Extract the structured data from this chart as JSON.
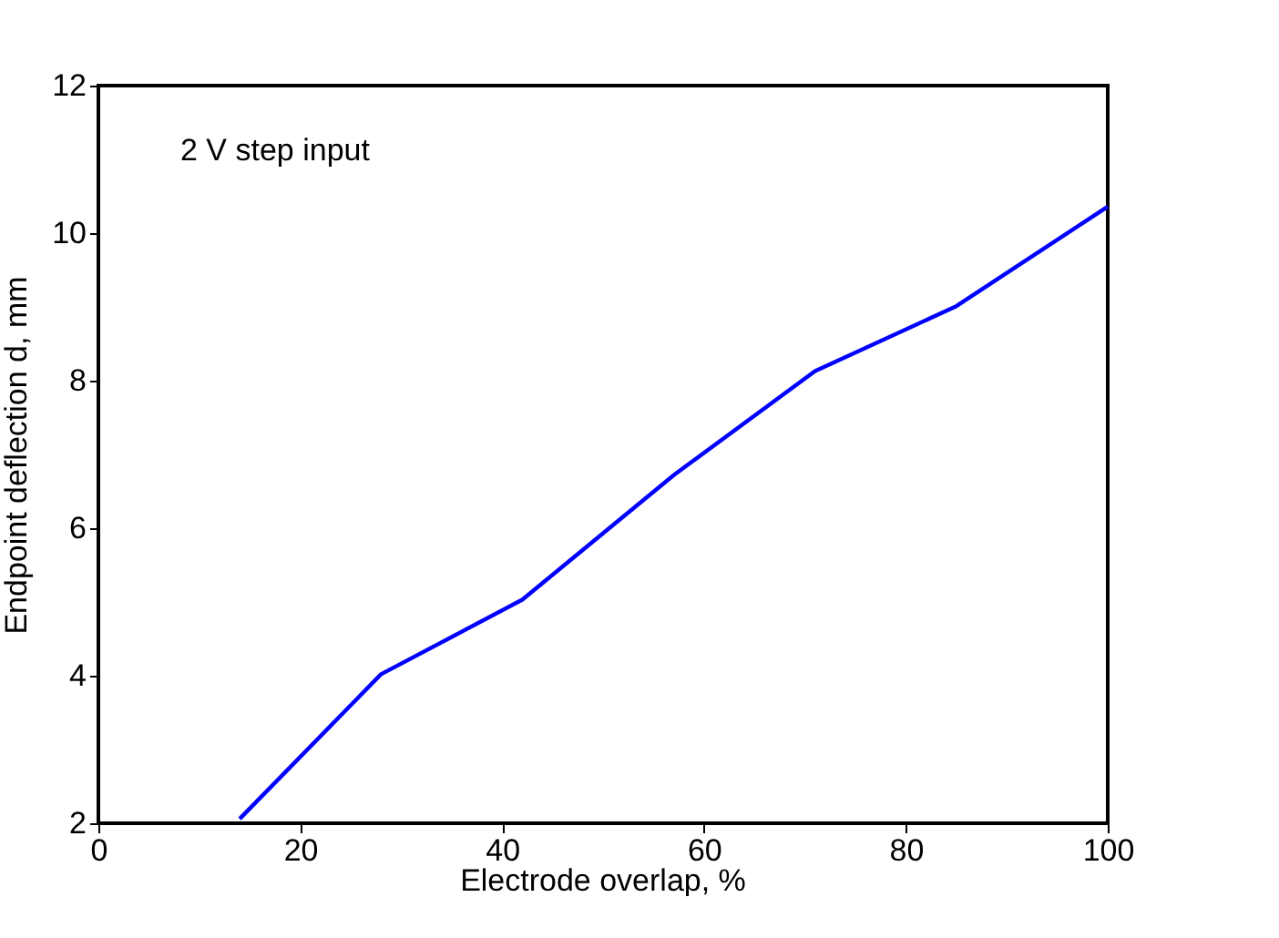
{
  "chart_data": {
    "type": "line",
    "x": [
      14,
      28,
      42,
      57,
      71,
      85,
      100
    ],
    "series": [
      {
        "color": "#0000ff",
        "values": [
          2.06,
          4.02,
          5.03,
          6.72,
          8.13,
          9.01,
          10.36
        ]
      }
    ],
    "xlabel": "Electrode overlap, %",
    "ylabel": "Endpoint deflection d, mm",
    "annotations": [
      "2 V step input"
    ],
    "xlim": [
      0,
      100
    ],
    "xticks": [
      0,
      20,
      40,
      60,
      80,
      100
    ],
    "ylim": [
      2,
      12
    ],
    "yticks": [
      2,
      4,
      6,
      8,
      10,
      12
    ],
    "grid": false,
    "legend": false,
    "marker": "none",
    "line_style": "solid"
  }
}
